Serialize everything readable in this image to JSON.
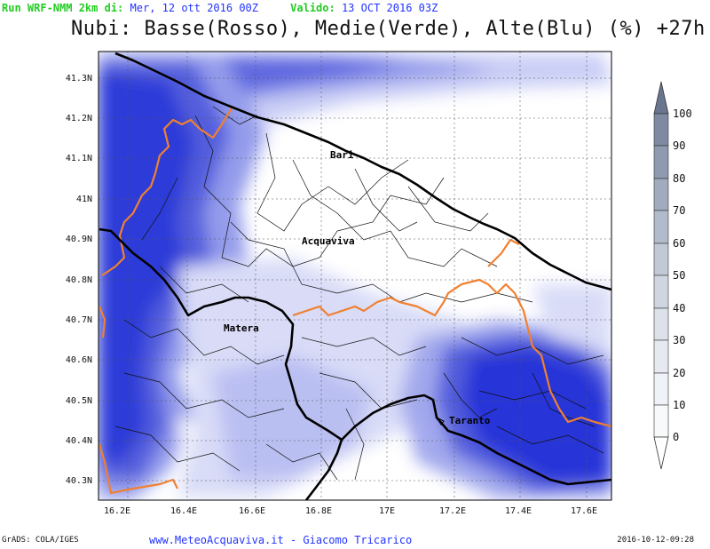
{
  "header": {
    "run_label": "Run WRF-NMM 2km di:",
    "run_value": "Mer, 12 ott 2016 00Z",
    "valid_label": "Valido:",
    "valid_value": "13 OCT 2016 03Z",
    "title": "Nubi: Basse(Rosso), Medie(Verde), Alte(Blu) (%) +27h"
  },
  "map": {
    "lat_ticks": [
      "41.3N",
      "41.2N",
      "41.1N",
      "41N",
      "40.9N",
      "40.8N",
      "40.7N",
      "40.6N",
      "40.5N",
      "40.4N",
      "40.3N"
    ],
    "lon_ticks": [
      "16.2E",
      "16.4E",
      "16.6E",
      "16.8E",
      "17E",
      "17.2E",
      "17.4E",
      "17.6E"
    ],
    "cities": [
      {
        "name": "Bari"
      },
      {
        "name": "Acquaviva"
      },
      {
        "name": "Matera"
      },
      {
        "name": "Taranto"
      }
    ],
    "colors": {
      "cloud_high": "#1f2bd6",
      "region_border": "#f08030",
      "coast": "#000000"
    }
  },
  "colorbar": {
    "labels": [
      "100",
      "90",
      "80",
      "70",
      "60",
      "50",
      "40",
      "30",
      "20",
      "10",
      "0"
    ]
  },
  "footer": {
    "grads": "GrADS: COLA/IGES",
    "site": "www.MeteoAcquaviva.it  -  Giacomo Tricarico",
    "timestamp": "2016-10-12-09:28"
  }
}
